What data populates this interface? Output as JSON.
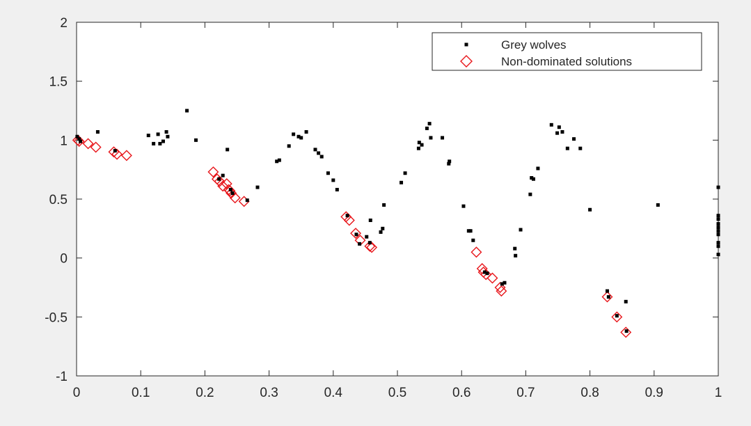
{
  "chart_data": {
    "type": "scatter",
    "title": "",
    "xlabel": "",
    "ylabel": "",
    "xlim": [
      0,
      1
    ],
    "ylim": [
      -1,
      2
    ],
    "xticks": [
      0,
      0.1,
      0.2,
      0.3,
      0.4,
      0.5,
      0.6,
      0.7,
      0.8,
      0.9,
      1
    ],
    "xtick_labels": [
      "0",
      "0.1",
      "0.2",
      "0.3",
      "0.4",
      "0.5",
      "0.6",
      "0.7",
      "0.8",
      "0.9",
      "1"
    ],
    "yticks": [
      -1,
      -0.5,
      0,
      0.5,
      1,
      1.5,
      2
    ],
    "ytick_labels": [
      "-1",
      "-0.5",
      "0",
      "0.5",
      "1",
      "1.5",
      "2"
    ],
    "grid": false,
    "legend_position": "top-right",
    "series": [
      {
        "name": "Grey wolves",
        "marker": "dot",
        "color": "#000000",
        "points": [
          [
            0.001,
            1.03
          ],
          [
            0.004,
            1.01
          ],
          [
            0.006,
            0.99
          ],
          [
            0.033,
            1.07
          ],
          [
            0.06,
            0.91
          ],
          [
            0.112,
            1.04
          ],
          [
            0.12,
            0.97
          ],
          [
            0.127,
            1.05
          ],
          [
            0.13,
            0.97
          ],
          [
            0.135,
            0.99
          ],
          [
            0.14,
            1.07
          ],
          [
            0.142,
            1.03
          ],
          [
            0.172,
            1.25
          ],
          [
            0.186,
            1.0
          ],
          [
            0.235,
            0.92
          ],
          [
            0.222,
            0.67
          ],
          [
            0.228,
            0.7
          ],
          [
            0.24,
            0.58
          ],
          [
            0.243,
            0.55
          ],
          [
            0.282,
            0.6
          ],
          [
            0.266,
            0.49
          ],
          [
            0.312,
            0.82
          ],
          [
            0.316,
            0.83
          ],
          [
            0.331,
            0.95
          ],
          [
            0.338,
            1.05
          ],
          [
            0.346,
            1.03
          ],
          [
            0.35,
            1.02
          ],
          [
            0.358,
            1.07
          ],
          [
            0.372,
            0.92
          ],
          [
            0.377,
            0.89
          ],
          [
            0.382,
            0.86
          ],
          [
            0.392,
            0.72
          ],
          [
            0.4,
            0.66
          ],
          [
            0.406,
            0.58
          ],
          [
            0.422,
            0.36
          ],
          [
            0.436,
            0.2
          ],
          [
            0.441,
            0.12
          ],
          [
            0.452,
            0.18
          ],
          [
            0.457,
            0.13
          ],
          [
            0.458,
            0.32
          ],
          [
            0.474,
            0.22
          ],
          [
            0.477,
            0.25
          ],
          [
            0.479,
            0.45
          ],
          [
            0.506,
            0.64
          ],
          [
            0.512,
            0.72
          ],
          [
            0.533,
            0.93
          ],
          [
            0.534,
            0.98
          ],
          [
            0.538,
            0.96
          ],
          [
            0.546,
            1.1
          ],
          [
            0.55,
            1.14
          ],
          [
            0.552,
            1.02
          ],
          [
            0.57,
            1.02
          ],
          [
            0.58,
            0.8
          ],
          [
            0.581,
            0.82
          ],
          [
            0.603,
            0.44
          ],
          [
            0.611,
            0.23
          ],
          [
            0.614,
            0.23
          ],
          [
            0.618,
            0.15
          ],
          [
            0.636,
            -0.12
          ],
          [
            0.64,
            -0.13
          ],
          [
            0.663,
            -0.22
          ],
          [
            0.667,
            -0.21
          ],
          [
            0.683,
            0.08
          ],
          [
            0.684,
            0.02
          ],
          [
            0.692,
            0.24
          ],
          [
            0.707,
            0.54
          ],
          [
            0.709,
            0.68
          ],
          [
            0.712,
            0.67
          ],
          [
            0.719,
            0.76
          ],
          [
            0.74,
            1.13
          ],
          [
            0.749,
            1.06
          ],
          [
            0.752,
            1.11
          ],
          [
            0.757,
            1.07
          ],
          [
            0.765,
            0.93
          ],
          [
            0.775,
            1.01
          ],
          [
            0.785,
            0.93
          ],
          [
            0.8,
            0.41
          ],
          [
            0.827,
            -0.28
          ],
          [
            0.829,
            -0.33
          ],
          [
            0.842,
            -0.49
          ],
          [
            0.856,
            -0.37
          ],
          [
            0.857,
            -0.62
          ],
          [
            0.906,
            0.45
          ],
          [
            1.0,
            0.6
          ],
          [
            1.0,
            0.36
          ],
          [
            1.0,
            0.33
          ],
          [
            1.0,
            0.29
          ],
          [
            1.0,
            0.26
          ],
          [
            1.0,
            0.23
          ],
          [
            1.0,
            0.2
          ],
          [
            1.0,
            0.13
          ],
          [
            1.0,
            0.1
          ],
          [
            1.0,
            0.03
          ]
        ]
      },
      {
        "name": "Non-dominated solutions",
        "marker": "diamond",
        "color": "#e8161b",
        "points": [
          [
            0.002,
            1.0
          ],
          [
            0.004,
            0.99
          ],
          [
            0.018,
            0.97
          ],
          [
            0.03,
            0.94
          ],
          [
            0.058,
            0.9
          ],
          [
            0.063,
            0.88
          ],
          [
            0.078,
            0.87
          ],
          [
            0.213,
            0.73
          ],
          [
            0.219,
            0.67
          ],
          [
            0.223,
            0.65
          ],
          [
            0.228,
            0.61
          ],
          [
            0.234,
            0.63
          ],
          [
            0.237,
            0.58
          ],
          [
            0.239,
            0.57
          ],
          [
            0.241,
            0.55
          ],
          [
            0.247,
            0.51
          ],
          [
            0.261,
            0.48
          ],
          [
            0.42,
            0.35
          ],
          [
            0.425,
            0.32
          ],
          [
            0.435,
            0.21
          ],
          [
            0.442,
            0.15
          ],
          [
            0.457,
            0.1
          ],
          [
            0.46,
            0.09
          ],
          [
            0.623,
            0.05
          ],
          [
            0.632,
            -0.09
          ],
          [
            0.634,
            -0.12
          ],
          [
            0.638,
            -0.14
          ],
          [
            0.648,
            -0.17
          ],
          [
            0.66,
            -0.25
          ],
          [
            0.662,
            -0.28
          ],
          [
            0.827,
            -0.33
          ],
          [
            0.842,
            -0.5
          ],
          [
            0.856,
            -0.63
          ]
        ]
      }
    ]
  }
}
